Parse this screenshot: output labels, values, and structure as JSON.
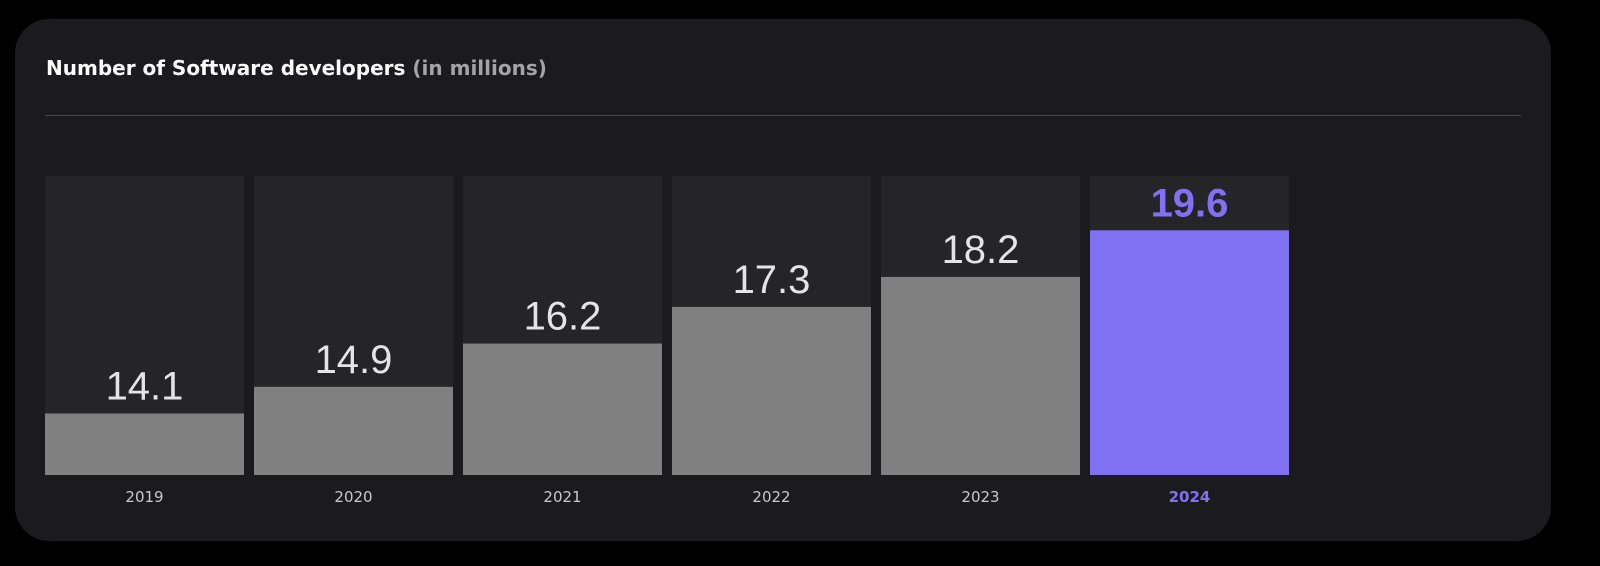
{
  "header": {
    "title": "Number of Software developers",
    "subtitle": "(in millions)"
  },
  "colors": {
    "background": "#000000",
    "card": "#1b1b1d",
    "bar_track": "#252527",
    "bar": "#808080",
    "highlight": "#8071f3",
    "text": "#ffffff",
    "muted": "#a3a3a8"
  },
  "chart_data": {
    "type": "bar",
    "title": "Number of Software developers (in millions)",
    "categories": [
      "2019",
      "2020",
      "2021",
      "2022",
      "2023",
      "2024"
    ],
    "values": [
      14.1,
      14.9,
      16.2,
      17.3,
      18.2,
      19.6
    ],
    "value_labels": [
      "14.1",
      "14.9",
      "16.2",
      "17.3",
      "18.2",
      "19.6"
    ],
    "highlight": "2024",
    "xlabel": "",
    "ylabel": "",
    "grid": false,
    "legend": "none"
  }
}
